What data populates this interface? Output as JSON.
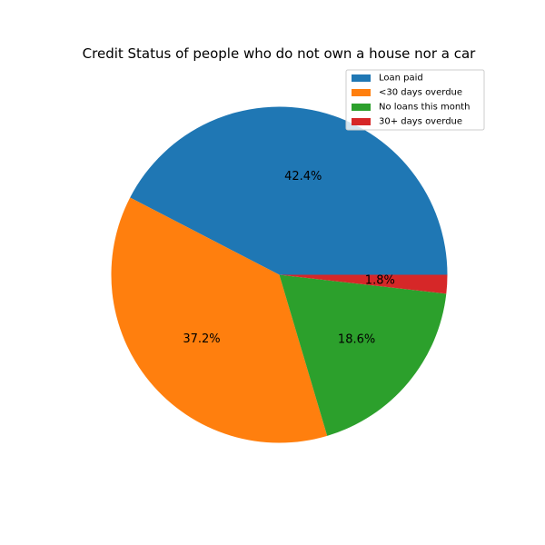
{
  "chart_data": {
    "type": "pie",
    "title": "Credit Status of people who do not own a house nor a car",
    "categories": [
      "Loan paid",
      "<30 days overdue",
      "No loans this month",
      "30+ days overdue"
    ],
    "values": [
      42.4,
      37.2,
      18.6,
      1.8
    ],
    "value_labels": [
      "42.4%",
      "37.2%",
      "18.6%",
      "1.8%"
    ],
    "colors": [
      "#1f77b4",
      "#ff7f0e",
      "#2ca02c",
      "#d62728"
    ],
    "start_angle_deg": 0,
    "direction": "counterclockwise",
    "legend": {
      "placement": "upper right",
      "entries": [
        "Loan paid",
        "<30 days overdue",
        "No loans this month",
        "30+ days overdue"
      ]
    }
  }
}
